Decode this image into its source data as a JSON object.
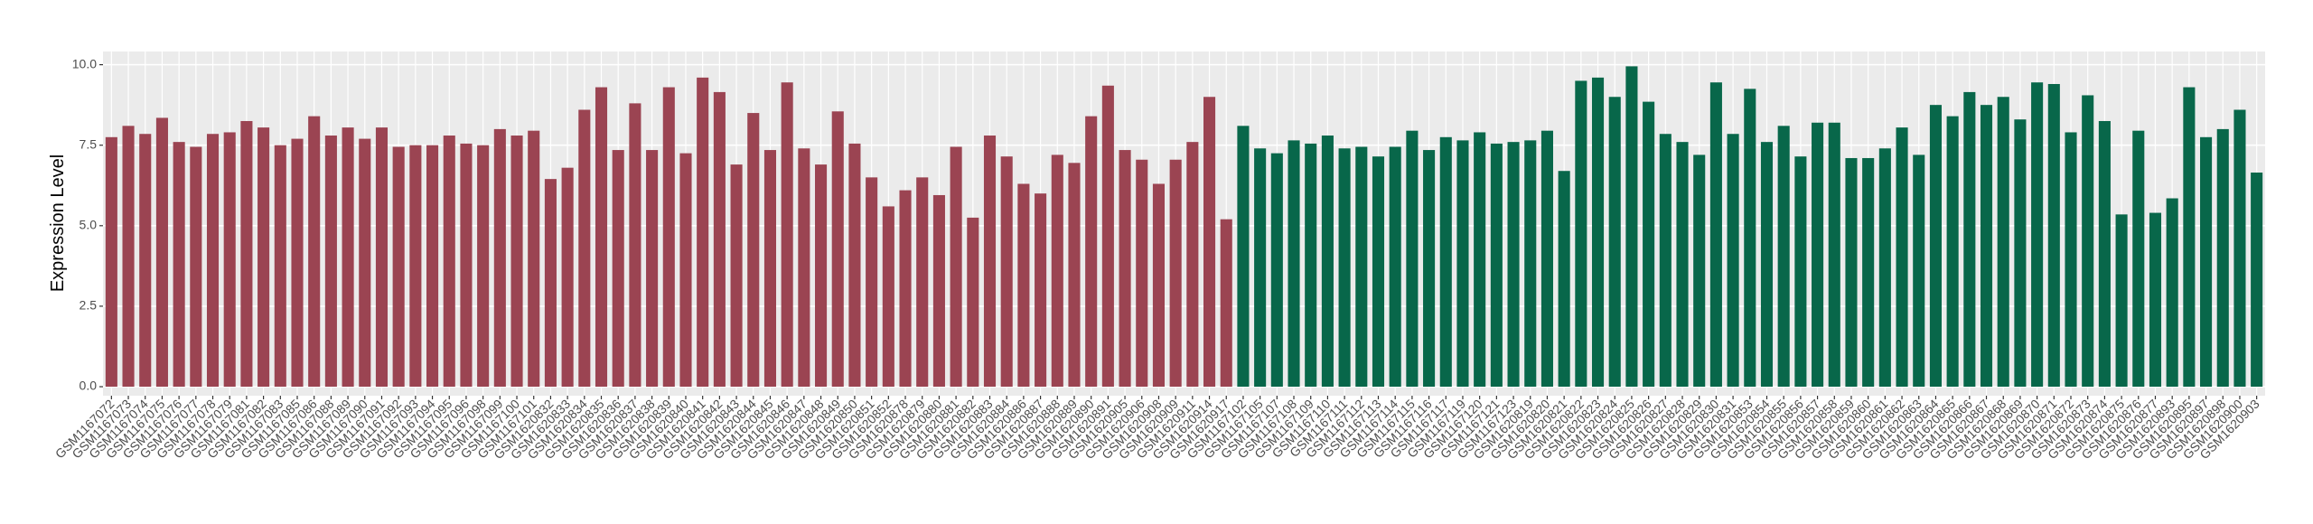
{
  "chart_data": {
    "type": "bar",
    "y_label": "Expression Level",
    "categories": [
      "GSM1167072",
      "GSM1167073",
      "GSM1167074",
      "GSM1167075",
      "GSM1167076",
      "GSM1167077",
      "GSM1167078",
      "GSM1167079",
      "GSM1167081",
      "GSM1167082",
      "GSM1167083",
      "GSM1167085",
      "GSM1167086",
      "GSM1167088",
      "GSM1167089",
      "GSM1167090",
      "GSM1167091",
      "GSM1167092",
      "GSM1167093",
      "GSM1167094",
      "GSM1167095",
      "GSM1167096",
      "GSM1167098",
      "GSM1167099",
      "GSM1167100",
      "GSM1167101",
      "GSM1620832",
      "GSM1620833",
      "GSM1620834",
      "GSM1620835",
      "GSM1620836",
      "GSM1620837",
      "GSM1620838",
      "GSM1620839",
      "GSM1620840",
      "GSM1620841",
      "GSM1620842",
      "GSM1620843",
      "GSM1620844",
      "GSM1620845",
      "GSM1620846",
      "GSM1620847",
      "GSM1620848",
      "GSM1620849",
      "GSM1620850",
      "GSM1620851",
      "GSM1620852",
      "GSM1620878",
      "GSM1620879",
      "GSM1620880",
      "GSM1620881",
      "GSM1620882",
      "GSM1620883",
      "GSM1620884",
      "GSM1620886",
      "GSM1620887",
      "GSM1620888",
      "GSM1620889",
      "GSM1620890",
      "GSM1620891",
      "GSM1620905",
      "GSM1620906",
      "GSM1620908",
      "GSM1620909",
      "GSM1620911",
      "GSM1620914",
      "GSM1620917",
      "GSM1167102",
      "GSM1167105",
      "GSM1167107",
      "GSM1167108",
      "GSM1167109",
      "GSM1167110",
      "GSM1167111",
      "GSM1167112",
      "GSM1167113",
      "GSM1167114",
      "GSM1167115",
      "GSM1167116",
      "GSM1167117",
      "GSM1167119",
      "GSM1167120",
      "GSM1167121",
      "GSM1167123",
      "GSM1620819",
      "GSM1620820",
      "GSM1620821",
      "GSM1620822",
      "GSM1620823",
      "GSM1620824",
      "GSM1620825",
      "GSM1620826",
      "GSM1620827",
      "GSM1620828",
      "GSM1620829",
      "GSM1620830",
      "GSM1620831",
      "GSM1620853",
      "GSM1620854",
      "GSM1620855",
      "GSM1620856",
      "GSM1620857",
      "GSM1620858",
      "GSM1620859",
      "GSM1620860",
      "GSM1620861",
      "GSM1620862",
      "GSM1620863",
      "GSM1620864",
      "GSM1620865",
      "GSM1620866",
      "GSM1620867",
      "GSM1620868",
      "GSM1620869",
      "GSM1620870",
      "GSM1620871",
      "GSM1620872",
      "GSM1620873",
      "GSM1620874",
      "GSM1620875",
      "GSM1620876",
      "GSM1620877",
      "GSM1620893",
      "GSM1620895",
      "GSM1620897",
      "GSM1620898",
      "GSM1620900",
      "GSM1620903"
    ],
    "series": [
      {
        "color": "#9b4452",
        "values": [
          7.75,
          8.1,
          7.85,
          8.35,
          7.6,
          7.45,
          7.85,
          7.9,
          8.25,
          8.05,
          7.5,
          7.7,
          8.4,
          7.8,
          8.05,
          7.7,
          8.05,
          7.45,
          7.5,
          7.5,
          7.8,
          7.55,
          7.5,
          8.0,
          7.8,
          7.95,
          6.45,
          6.8,
          8.6,
          9.3,
          7.35,
          8.8,
          7.35,
          9.3,
          7.25,
          9.6,
          9.15,
          6.9,
          8.5,
          7.35,
          9.45,
          7.4,
          6.9,
          8.55,
          7.55,
          6.5,
          5.6,
          6.1,
          6.5,
          5.95,
          7.45,
          5.25,
          7.8,
          7.15,
          6.3,
          6.0,
          7.2,
          6.95,
          8.4,
          9.35,
          7.35,
          7.05,
          6.3,
          7.05,
          7.6,
          9.0,
          5.2,
          null,
          null,
          null,
          null,
          null,
          null,
          null,
          null,
          null,
          null,
          null,
          null,
          null,
          null,
          null,
          null,
          null,
          null,
          null,
          null,
          null,
          null,
          null,
          null,
          null,
          null,
          null,
          null,
          null,
          null,
          null,
          null,
          null,
          null,
          null,
          null,
          null,
          null,
          null,
          null,
          null,
          null,
          null,
          null,
          null,
          null,
          null,
          null,
          null,
          null,
          null,
          null,
          null,
          null,
          null,
          null,
          null,
          null,
          null,
          null,
          null
        ]
      },
      {
        "color": "#08674a",
        "values": [
          null,
          null,
          null,
          null,
          null,
          null,
          null,
          null,
          null,
          null,
          null,
          null,
          null,
          null,
          null,
          null,
          null,
          null,
          null,
          null,
          null,
          null,
          null,
          null,
          null,
          null,
          null,
          null,
          null,
          null,
          null,
          null,
          null,
          null,
          null,
          null,
          null,
          null,
          null,
          null,
          null,
          null,
          null,
          null,
          null,
          null,
          null,
          null,
          null,
          null,
          null,
          null,
          null,
          null,
          null,
          null,
          null,
          null,
          null,
          null,
          null,
          null,
          null,
          null,
          null,
          null,
          null,
          8.1,
          7.4,
          7.25,
          7.65,
          7.55,
          7.8,
          7.4,
          7.45,
          7.15,
          7.45,
          7.95,
          7.35,
          7.75,
          7.65,
          7.9,
          7.55,
          7.6,
          7.65,
          7.95,
          6.7,
          9.5,
          9.6,
          9.0,
          9.95,
          8.85,
          7.85,
          7.6,
          7.2,
          9.45,
          7.85,
          9.25,
          7.6,
          8.1,
          7.15,
          8.2,
          8.2,
          7.1,
          7.1,
          7.4,
          8.05,
          7.2,
          8.75,
          8.4,
          9.15,
          8.75,
          9.0,
          8.3,
          9.45,
          9.4,
          7.9,
          9.05,
          8.25,
          5.35,
          7.95,
          5.4,
          5.85,
          9.3,
          7.75,
          8.0,
          8.6,
          6.65
        ]
      }
    ],
    "ylim": [
      -0.28,
      10.41
    ],
    "yticks": [
      {
        "value": 0,
        "label": "0.0"
      },
      {
        "value": 2.5,
        "label": "2.5"
      },
      {
        "value": 5,
        "label": "5.0"
      },
      {
        "value": 7.5,
        "label": "7.5"
      },
      {
        "value": 10,
        "label": "10.0"
      }
    ],
    "grid": true
  }
}
